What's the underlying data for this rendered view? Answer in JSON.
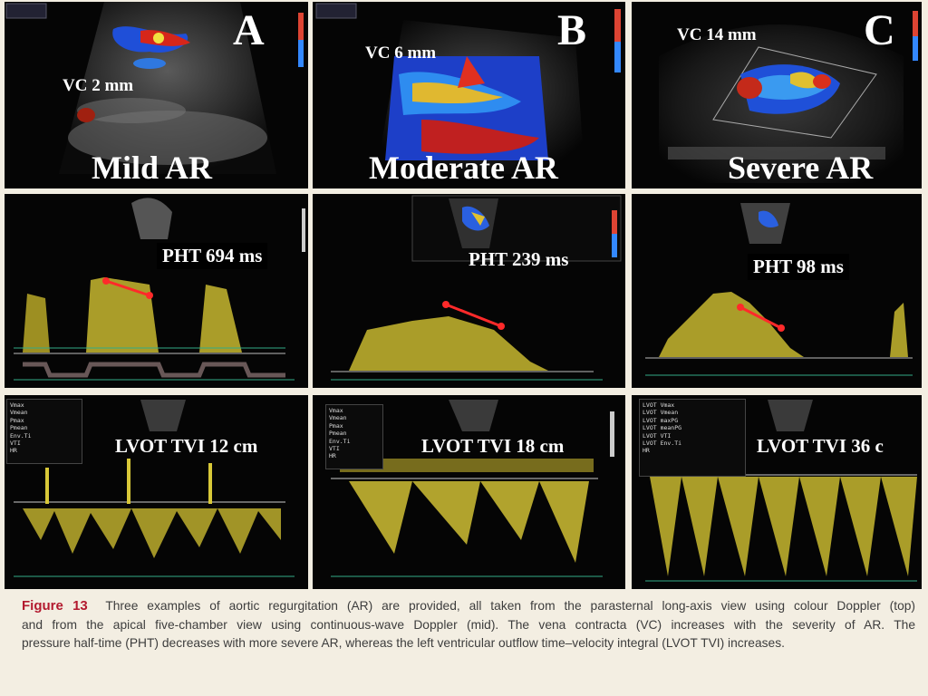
{
  "panels": {
    "A": {
      "letter": "A",
      "label": "Mild AR",
      "vc": "VC 2 mm"
    },
    "B": {
      "letter": "B",
      "label": "Moderate AR",
      "vc": "VC 6 mm"
    },
    "C": {
      "letter": "C",
      "label": "Severe AR",
      "vc": "VC 14 mm"
    },
    "D": {
      "pht": "PHT 694 ms"
    },
    "E": {
      "pht": "PHT 239 ms"
    },
    "F": {
      "pht": "PHT 98 ms"
    },
    "G": {
      "tvi": "LVOT TVI 12 cm"
    },
    "H": {
      "tvi": "LVOT TVI 18 cm"
    },
    "I": {
      "tvi": "LVOT TVI 36 c"
    }
  },
  "caption": {
    "figure_label": "Figure 13",
    "line1": "Three examples of aortic regurgitation (AR) are provided, all taken from the parasternal long-axis view using colour Doppler (top)",
    "line2": "and from the apical five-chamber view using continuous-wave Doppler (mid). The vena contracta (VC) increases with the severity of AR. The",
    "line3": "pressure half-time (PHT) decreases with more severe AR, whereas the left ventricular outflow time–velocity integral (LVOT TVI) increases."
  },
  "colors": {
    "doppler_yellow": "#e0cf3a",
    "pht_line": "#ff2a2a",
    "figure_label": "#b31a2f",
    "color_doppler_red": "#d8241c",
    "color_doppler_blue": "#2050e0"
  }
}
